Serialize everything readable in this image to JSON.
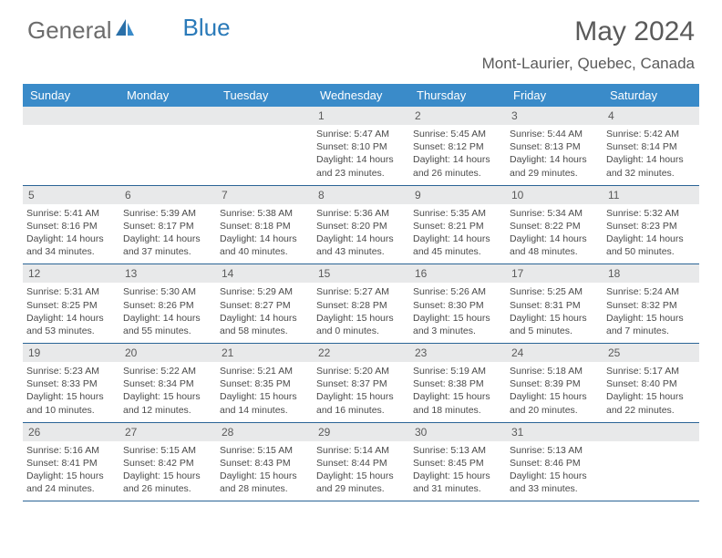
{
  "logo": {
    "text1": "General",
    "text2": "Blue"
  },
  "title": "May 2024",
  "location": "Mont-Laurier, Quebec, Canada",
  "header_bg": "#3a8bc9",
  "date_bg": "#e8e9ea",
  "border_color": "#2a6496",
  "dayNames": [
    "Sunday",
    "Monday",
    "Tuesday",
    "Wednesday",
    "Thursday",
    "Friday",
    "Saturday"
  ],
  "weeks": [
    [
      {
        "date": "",
        "sunrise": "",
        "sunset": "",
        "daylight": ""
      },
      {
        "date": "",
        "sunrise": "",
        "sunset": "",
        "daylight": ""
      },
      {
        "date": "",
        "sunrise": "",
        "sunset": "",
        "daylight": ""
      },
      {
        "date": "1",
        "sunrise": "Sunrise: 5:47 AM",
        "sunset": "Sunset: 8:10 PM",
        "daylight": "Daylight: 14 hours and 23 minutes."
      },
      {
        "date": "2",
        "sunrise": "Sunrise: 5:45 AM",
        "sunset": "Sunset: 8:12 PM",
        "daylight": "Daylight: 14 hours and 26 minutes."
      },
      {
        "date": "3",
        "sunrise": "Sunrise: 5:44 AM",
        "sunset": "Sunset: 8:13 PM",
        "daylight": "Daylight: 14 hours and 29 minutes."
      },
      {
        "date": "4",
        "sunrise": "Sunrise: 5:42 AM",
        "sunset": "Sunset: 8:14 PM",
        "daylight": "Daylight: 14 hours and 32 minutes."
      }
    ],
    [
      {
        "date": "5",
        "sunrise": "Sunrise: 5:41 AM",
        "sunset": "Sunset: 8:16 PM",
        "daylight": "Daylight: 14 hours and 34 minutes."
      },
      {
        "date": "6",
        "sunrise": "Sunrise: 5:39 AM",
        "sunset": "Sunset: 8:17 PM",
        "daylight": "Daylight: 14 hours and 37 minutes."
      },
      {
        "date": "7",
        "sunrise": "Sunrise: 5:38 AM",
        "sunset": "Sunset: 8:18 PM",
        "daylight": "Daylight: 14 hours and 40 minutes."
      },
      {
        "date": "8",
        "sunrise": "Sunrise: 5:36 AM",
        "sunset": "Sunset: 8:20 PM",
        "daylight": "Daylight: 14 hours and 43 minutes."
      },
      {
        "date": "9",
        "sunrise": "Sunrise: 5:35 AM",
        "sunset": "Sunset: 8:21 PM",
        "daylight": "Daylight: 14 hours and 45 minutes."
      },
      {
        "date": "10",
        "sunrise": "Sunrise: 5:34 AM",
        "sunset": "Sunset: 8:22 PM",
        "daylight": "Daylight: 14 hours and 48 minutes."
      },
      {
        "date": "11",
        "sunrise": "Sunrise: 5:32 AM",
        "sunset": "Sunset: 8:23 PM",
        "daylight": "Daylight: 14 hours and 50 minutes."
      }
    ],
    [
      {
        "date": "12",
        "sunrise": "Sunrise: 5:31 AM",
        "sunset": "Sunset: 8:25 PM",
        "daylight": "Daylight: 14 hours and 53 minutes."
      },
      {
        "date": "13",
        "sunrise": "Sunrise: 5:30 AM",
        "sunset": "Sunset: 8:26 PM",
        "daylight": "Daylight: 14 hours and 55 minutes."
      },
      {
        "date": "14",
        "sunrise": "Sunrise: 5:29 AM",
        "sunset": "Sunset: 8:27 PM",
        "daylight": "Daylight: 14 hours and 58 minutes."
      },
      {
        "date": "15",
        "sunrise": "Sunrise: 5:27 AM",
        "sunset": "Sunset: 8:28 PM",
        "daylight": "Daylight: 15 hours and 0 minutes."
      },
      {
        "date": "16",
        "sunrise": "Sunrise: 5:26 AM",
        "sunset": "Sunset: 8:30 PM",
        "daylight": "Daylight: 15 hours and 3 minutes."
      },
      {
        "date": "17",
        "sunrise": "Sunrise: 5:25 AM",
        "sunset": "Sunset: 8:31 PM",
        "daylight": "Daylight: 15 hours and 5 minutes."
      },
      {
        "date": "18",
        "sunrise": "Sunrise: 5:24 AM",
        "sunset": "Sunset: 8:32 PM",
        "daylight": "Daylight: 15 hours and 7 minutes."
      }
    ],
    [
      {
        "date": "19",
        "sunrise": "Sunrise: 5:23 AM",
        "sunset": "Sunset: 8:33 PM",
        "daylight": "Daylight: 15 hours and 10 minutes."
      },
      {
        "date": "20",
        "sunrise": "Sunrise: 5:22 AM",
        "sunset": "Sunset: 8:34 PM",
        "daylight": "Daylight: 15 hours and 12 minutes."
      },
      {
        "date": "21",
        "sunrise": "Sunrise: 5:21 AM",
        "sunset": "Sunset: 8:35 PM",
        "daylight": "Daylight: 15 hours and 14 minutes."
      },
      {
        "date": "22",
        "sunrise": "Sunrise: 5:20 AM",
        "sunset": "Sunset: 8:37 PM",
        "daylight": "Daylight: 15 hours and 16 minutes."
      },
      {
        "date": "23",
        "sunrise": "Sunrise: 5:19 AM",
        "sunset": "Sunset: 8:38 PM",
        "daylight": "Daylight: 15 hours and 18 minutes."
      },
      {
        "date": "24",
        "sunrise": "Sunrise: 5:18 AM",
        "sunset": "Sunset: 8:39 PM",
        "daylight": "Daylight: 15 hours and 20 minutes."
      },
      {
        "date": "25",
        "sunrise": "Sunrise: 5:17 AM",
        "sunset": "Sunset: 8:40 PM",
        "daylight": "Daylight: 15 hours and 22 minutes."
      }
    ],
    [
      {
        "date": "26",
        "sunrise": "Sunrise: 5:16 AM",
        "sunset": "Sunset: 8:41 PM",
        "daylight": "Daylight: 15 hours and 24 minutes."
      },
      {
        "date": "27",
        "sunrise": "Sunrise: 5:15 AM",
        "sunset": "Sunset: 8:42 PM",
        "daylight": "Daylight: 15 hours and 26 minutes."
      },
      {
        "date": "28",
        "sunrise": "Sunrise: 5:15 AM",
        "sunset": "Sunset: 8:43 PM",
        "daylight": "Daylight: 15 hours and 28 minutes."
      },
      {
        "date": "29",
        "sunrise": "Sunrise: 5:14 AM",
        "sunset": "Sunset: 8:44 PM",
        "daylight": "Daylight: 15 hours and 29 minutes."
      },
      {
        "date": "30",
        "sunrise": "Sunrise: 5:13 AM",
        "sunset": "Sunset: 8:45 PM",
        "daylight": "Daylight: 15 hours and 31 minutes."
      },
      {
        "date": "31",
        "sunrise": "Sunrise: 5:13 AM",
        "sunset": "Sunset: 8:46 PM",
        "daylight": "Daylight: 15 hours and 33 minutes."
      },
      {
        "date": "",
        "sunrise": "",
        "sunset": "",
        "daylight": ""
      }
    ]
  ]
}
